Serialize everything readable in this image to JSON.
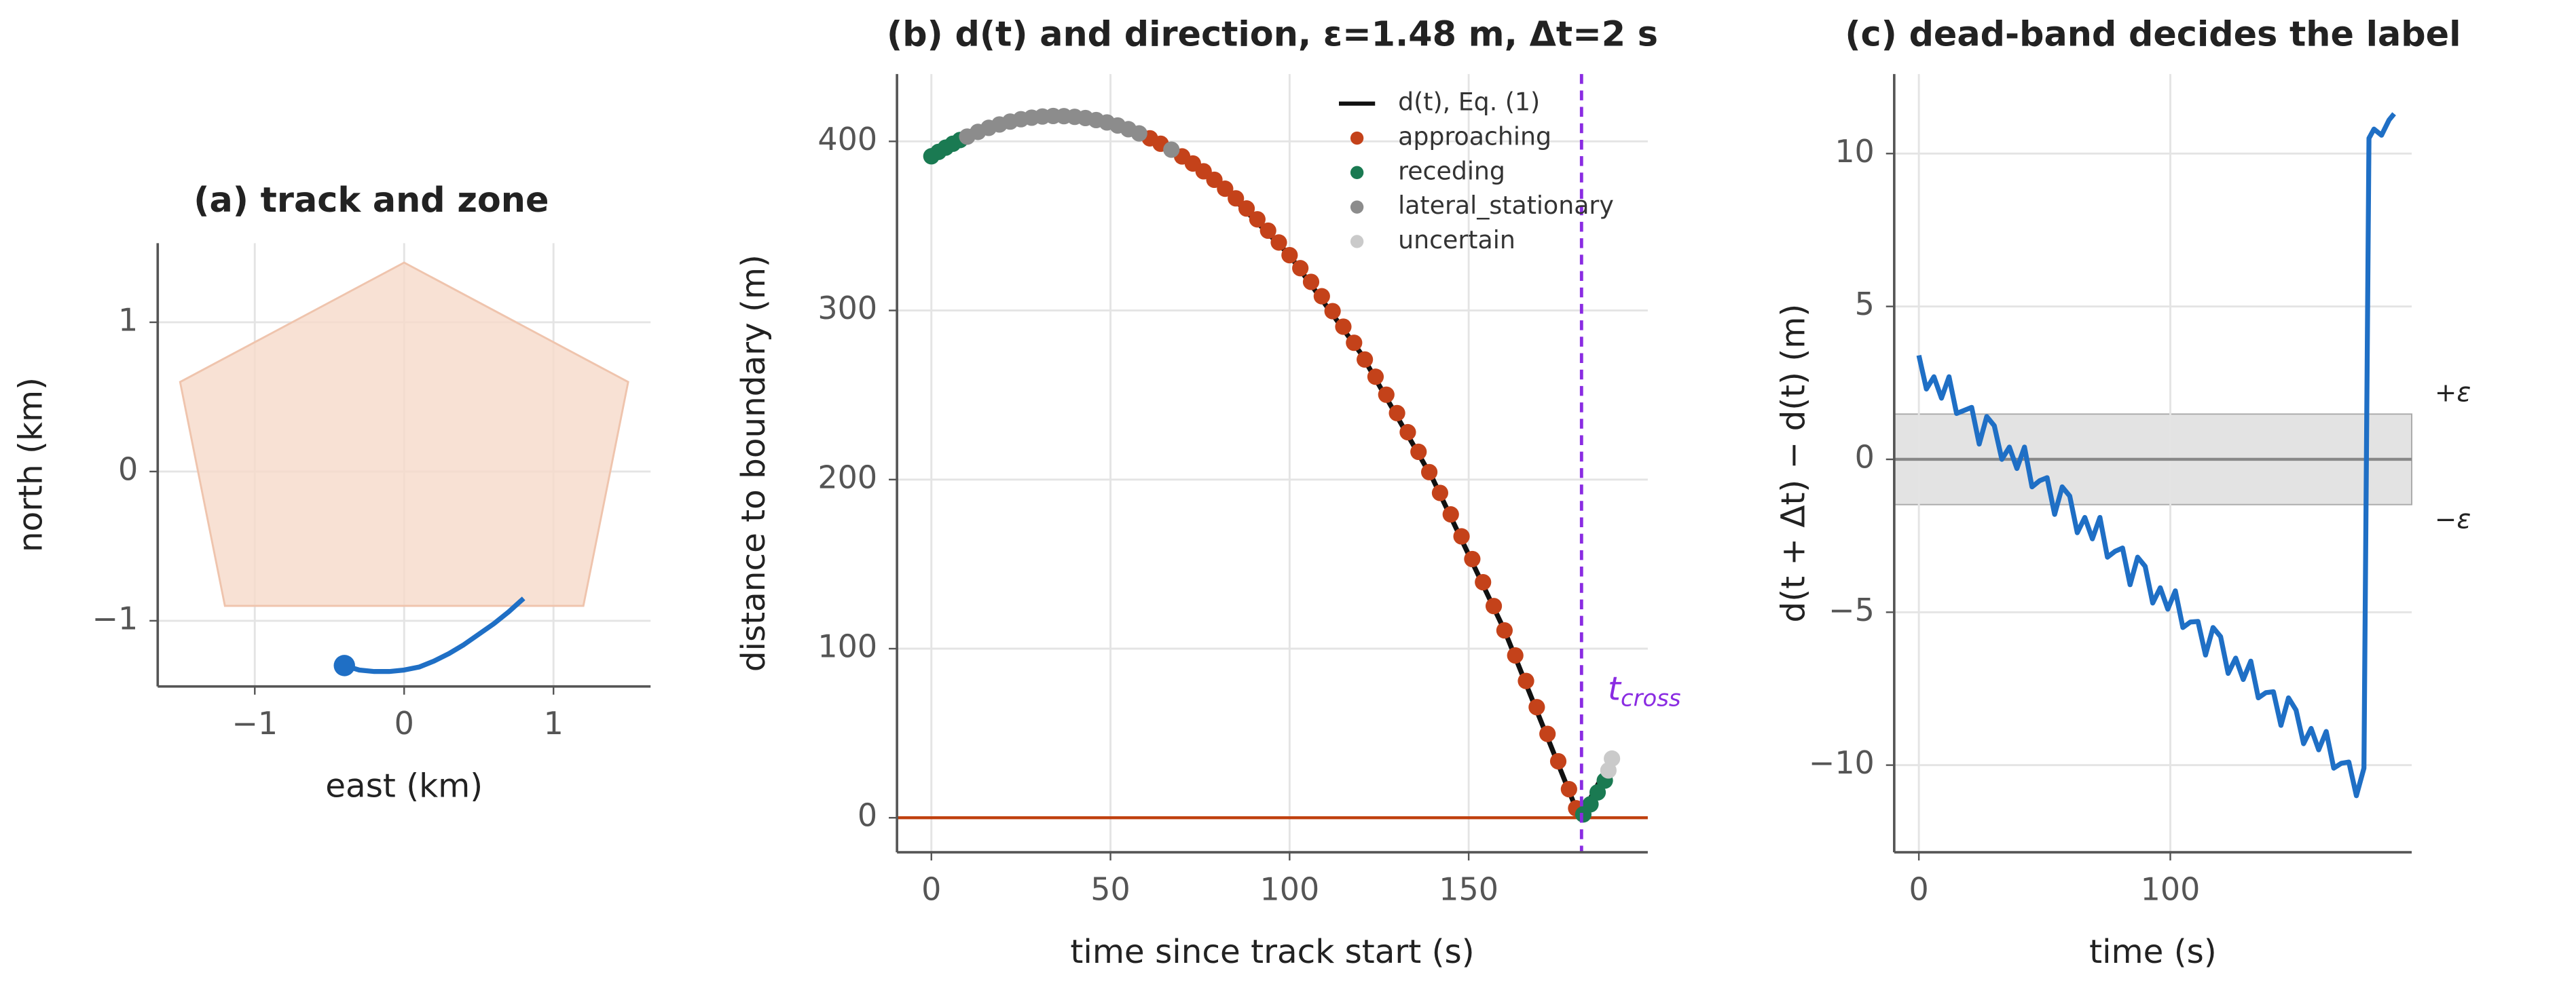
{
  "chart_data": [
    {
      "type": "line",
      "title": "(a) track and zone",
      "xlabel": "east (km)",
      "ylabel": "north (km)",
      "xlim": [
        -1.65,
        1.65
      ],
      "ylim": [
        -1.44,
        1.53
      ],
      "xticks": [
        {
          "value": -1,
          "label": "−1"
        },
        0,
        1
      ],
      "yticks": [
        {
          "value": -1,
          "label": "−1"
        },
        0,
        1
      ],
      "grid": true,
      "zone": {
        "x": [
          0,
          1.5,
          1.2,
          -1.2,
          -1.5
        ],
        "y": [
          1.4,
          0.6,
          -0.9,
          -0.9,
          0.6
        ],
        "color": "#f6d9c9"
      },
      "series": [
        {
          "color": "#1f6fc5",
          "start_marker": true,
          "x": [
            -0.4,
            -0.3,
            -0.2,
            -0.1,
            0.0,
            0.1,
            0.2,
            0.3,
            0.4,
            0.5,
            0.6,
            0.7,
            0.8
          ],
          "values": [
            -1.3,
            -1.33,
            -1.34,
            -1.34,
            -1.33,
            -1.31,
            -1.27,
            -1.22,
            -1.16,
            -1.09,
            -1.02,
            -0.94,
            -0.85
          ]
        }
      ]
    },
    {
      "type": "scatter",
      "title": "(b) d(t) and direction, ε=1.48 m, Δt=2 s",
      "xlabel": "time since track start (s)",
      "ylabel": "distance to boundary (m)",
      "xlim": [
        -9.6,
        200
      ],
      "ylim": [
        -20.4,
        439.8
      ],
      "xticks": [
        0,
        50,
        100,
        150
      ],
      "yticks": [
        0,
        100,
        200,
        300,
        400
      ],
      "grid": true,
      "legend": "upper right",
      "hline": {
        "value": 0,
        "color": "#c0410f"
      },
      "vline": {
        "value": 181.5,
        "color": "#8a2be2",
        "label": "t",
        "label_sub": "cross"
      },
      "series": [
        {
          "name": "d(t), Eq. (1)",
          "type": "line",
          "color": "#111111",
          "x": [
            0,
            20,
            40,
            60,
            80,
            100,
            120,
            140,
            160,
            181,
            190
          ],
          "values": [
            391.2,
            410.6,
            414.5,
            402.8,
            375.6,
            332.7,
            274.3,
            200.3,
            110.8,
            0,
            35
          ]
        },
        {
          "name": "approaching",
          "color": "#c4421a",
          "x": [
            61,
            64,
            70,
            73,
            76,
            79,
            82,
            85,
            88,
            91,
            94,
            97,
            100,
            103,
            106,
            109,
            112,
            115,
            118,
            121,
            124,
            127,
            130,
            133,
            136,
            139,
            142,
            145,
            148,
            151,
            154,
            157,
            160,
            163,
            166,
            169,
            172,
            175,
            178,
            180
          ],
          "values": [
            401.8,
            398.6,
            391.1,
            386.9,
            382.3,
            377.3,
            372.0,
            366.3,
            360.3,
            353.9,
            347.2,
            340.2,
            332.7,
            325.0,
            316.9,
            308.4,
            299.6,
            290.4,
            280.9,
            271.0,
            260.8,
            250.2,
            239.3,
            228.0,
            216.4,
            204.4,
            192.1,
            179.4,
            166.4,
            153.0,
            139.3,
            125.2,
            110.8,
            96.0,
            80.9,
            65.4,
            49.6,
            33.4,
            16.9,
            5.6
          ]
        },
        {
          "name": "receding",
          "color": "#1a7a52",
          "x": [
            0,
            2,
            4,
            6,
            8,
            182,
            184,
            186,
            188
          ],
          "values": [
            391.2,
            393.8,
            396.3,
            398.6,
            400.8,
            2,
            8,
            15,
            22
          ]
        },
        {
          "name": "lateral_stationary",
          "color": "#8c8c8c",
          "x": [
            10,
            13,
            16,
            19,
            22,
            25,
            28,
            31,
            34,
            37,
            40,
            43,
            46,
            49,
            52,
            55,
            58,
            67
          ],
          "values": [
            402.8,
            405.6,
            408.0,
            410.0,
            411.7,
            413.1,
            414.0,
            414.7,
            415.0,
            414.9,
            414.5,
            413.8,
            412.6,
            411.2,
            409.4,
            407.2,
            404.7,
            395.1
          ]
        },
        {
          "name": "uncertain",
          "color": "#cacaca",
          "x": [
            189,
            190
          ],
          "values": [
            28,
            35
          ]
        }
      ]
    },
    {
      "type": "line",
      "title": "(c) dead-band decides the label",
      "xlabel": "time (s)",
      "ylabel": "d(t + Δt) − d(t)  (m)",
      "xlim": [
        -9.8,
        196
      ],
      "ylim": [
        -12.85,
        12.6
      ],
      "xticks": [
        0,
        100
      ],
      "yticks": [
        {
          "value": -10,
          "label": "−10"
        },
        {
          "value": -5,
          "label": "−5"
        },
        0,
        5,
        10
      ],
      "grid": true,
      "band": {
        "range": [
          -1.48,
          1.48
        ],
        "color": "#d9d9d9",
        "labels": [
          "+ε",
          "−ε"
        ]
      },
      "hline": {
        "value": 0,
        "color": "#888888"
      },
      "series": [
        {
          "color": "#1f6fc5",
          "x": [
            0,
            3,
            6,
            9,
            12,
            15,
            18,
            21,
            24,
            27,
            30,
            33,
            36,
            39,
            42,
            45,
            48,
            51,
            54,
            57,
            60,
            63,
            66,
            69,
            72,
            75,
            78,
            81,
            84,
            87,
            90,
            93,
            96,
            99,
            102,
            105,
            108,
            111,
            114,
            117,
            120,
            123,
            126,
            129,
            132,
            135,
            138,
            141,
            144,
            147,
            150,
            153,
            156,
            159,
            162,
            165,
            168,
            171,
            174,
            177,
            179,
            181,
            184,
            187,
            189
          ],
          "values": [
            3.4,
            2.3,
            2.7,
            2.0,
            2.7,
            1.5,
            1.6,
            1.7,
            0.5,
            1.4,
            1.1,
            0.0,
            0.4,
            -0.3,
            0.4,
            -0.9,
            -0.7,
            -0.6,
            -1.8,
            -0.9,
            -1.2,
            -2.4,
            -1.9,
            -2.6,
            -1.9,
            -3.2,
            -3.01,
            -2.9,
            -4.1,
            -3.2,
            -3.5,
            -4.7,
            -4.2,
            -4.9,
            -4.3,
            -5.5,
            -5.32,
            -5.3,
            -6.4,
            -5.5,
            -5.8,
            -7.0,
            -6.5,
            -7.2,
            -6.6,
            -7.8,
            -7.63,
            -7.6,
            -8.7,
            -7.8,
            -8.2,
            -9.3,
            -8.8,
            -9.5,
            -8.9,
            -10.1,
            -9.94,
            -9.9,
            -11.0,
            -10.1,
            10.5,
            10.8,
            10.6,
            11.1,
            11.3
          ]
        }
      ]
    }
  ]
}
